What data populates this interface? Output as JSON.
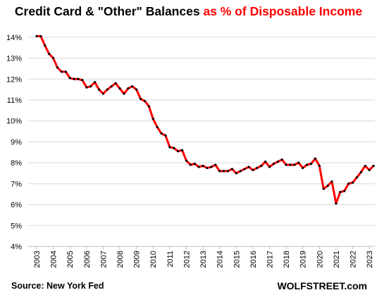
{
  "title": {
    "main": "Credit Card & \"Other\" Balances",
    "accent": "as % of Disposable Income"
  },
  "source": "Source: New York Fed",
  "brand": "WOLFSTREET.com",
  "colors": {
    "line": "#ff0000",
    "points": "#000000",
    "grid": "#d9d9d9",
    "accent_title": "#ff0000"
  },
  "chart_data": {
    "type": "line",
    "title": "Credit Card & \"Other\" Balances as % of Disposable Income",
    "xlabel": "",
    "ylabel": "",
    "ylim": [
      4,
      14.5
    ],
    "y_ticks": [
      4,
      5,
      6,
      7,
      8,
      9,
      10,
      11,
      12,
      13,
      14
    ],
    "y_tick_labels": [
      "4%",
      "5%",
      "6%",
      "7%",
      "8%",
      "9%",
      "10%",
      "11%",
      "12%",
      "13%",
      "14%"
    ],
    "x_tick_labels": [
      "2003",
      "2004",
      "2005",
      "2006",
      "2007",
      "2008",
      "2009",
      "2010",
      "2011",
      "2012",
      "2013",
      "2014",
      "2015",
      "2016",
      "2017",
      "2018",
      "2019",
      "2020",
      "2021",
      "2022",
      "2023"
    ],
    "x_range": [
      "2003 Q1",
      "2023 Q3"
    ],
    "grid": true,
    "legend": "none",
    "series": [
      {
        "values": [
          14.05,
          14.05,
          13.6,
          13.2,
          13.0,
          12.55,
          12.35,
          12.35,
          12.05,
          12.0,
          12.0,
          11.95,
          11.6,
          11.65,
          11.85,
          11.5,
          11.3,
          11.5,
          11.65,
          11.8,
          11.55,
          11.3,
          11.55,
          11.65,
          11.5,
          11.05,
          10.95,
          10.7,
          10.1,
          9.7,
          9.4,
          9.3,
          8.75,
          8.7,
          8.55,
          8.6,
          8.1,
          7.9,
          7.95,
          7.8,
          7.85,
          7.75,
          7.8,
          7.9,
          7.6,
          7.6,
          7.6,
          7.7,
          7.5,
          7.6,
          7.7,
          7.8,
          7.65,
          7.75,
          7.85,
          8.05,
          7.8,
          7.95,
          8.05,
          8.15,
          7.9,
          7.9,
          7.9,
          8.0,
          7.75,
          7.9,
          7.95,
          8.2,
          7.85,
          6.75,
          6.9,
          7.1,
          6.05,
          6.6,
          6.65,
          7.0,
          7.05,
          7.3,
          7.55,
          7.85,
          7.65,
          7.85
        ]
      }
    ]
  }
}
